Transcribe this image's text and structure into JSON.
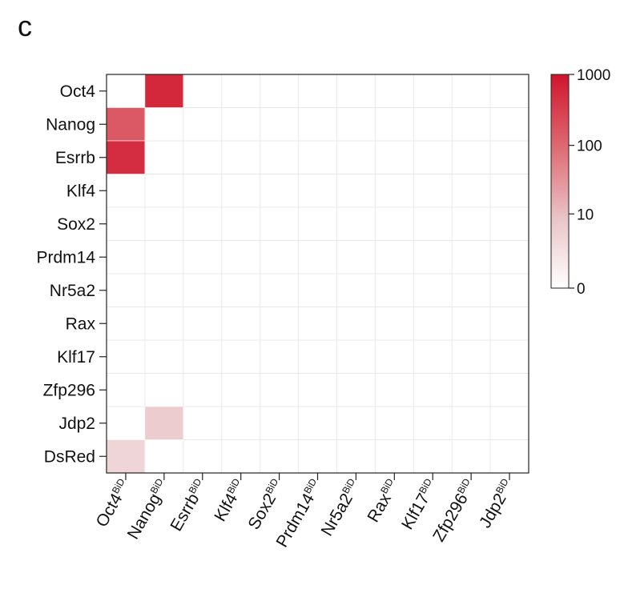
{
  "panel_label": "c",
  "chart_data": {
    "type": "heatmap",
    "x_categories": [
      "Oct4",
      "Nanog",
      "Esrrb",
      "Klf4",
      "Sox2",
      "Prdm14",
      "Nr5a2",
      "Rax",
      "Klf17",
      "Zfp296",
      "Jdp2"
    ],
    "x_suffix": "BiD",
    "y_categories": [
      "Oct4",
      "Nanog",
      "Esrrb",
      "Klf4",
      "Sox2",
      "Prdm14",
      "Nr5a2",
      "Rax",
      "Klf17",
      "Zfp296",
      "Jdp2",
      "DsRed"
    ],
    "values": [
      [
        0,
        600,
        0,
        0,
        0,
        0,
        0,
        0,
        0,
        0,
        0
      ],
      [
        150,
        0,
        0,
        0,
        0,
        0,
        0,
        0,
        0,
        0,
        0
      ],
      [
        500,
        0,
        0,
        0,
        0,
        0,
        0,
        0,
        0,
        0,
        0
      ],
      [
        0,
        0,
        0,
        0,
        0,
        0,
        0,
        0,
        0,
        0,
        0
      ],
      [
        0,
        0,
        0,
        0,
        0,
        0,
        0,
        0,
        0,
        0,
        0
      ],
      [
        0,
        0,
        0,
        0,
        0,
        0,
        0,
        0,
        0,
        0,
        0
      ],
      [
        0,
        0,
        0,
        0,
        0,
        0,
        0,
        0,
        0,
        0,
        0
      ],
      [
        0,
        0,
        0,
        0,
        0,
        0,
        0,
        0,
        0,
        0,
        0
      ],
      [
        0,
        0,
        0,
        0,
        0,
        0,
        0,
        0,
        0,
        0,
        0
      ],
      [
        0,
        0,
        0,
        0,
        0,
        0,
        0,
        0,
        0,
        0,
        0
      ],
      [
        0,
        6,
        0,
        0,
        0,
        0,
        0,
        0,
        0,
        0,
        0
      ],
      [
        4,
        0,
        0,
        0,
        0,
        0,
        0,
        0,
        0,
        0,
        0
      ]
    ],
    "colorbar": {
      "ticks": [
        0,
        10,
        100,
        1000
      ],
      "scale": "symlog",
      "color_min": "#ffffff",
      "color_max": "#d0142c"
    },
    "grid": true
  }
}
